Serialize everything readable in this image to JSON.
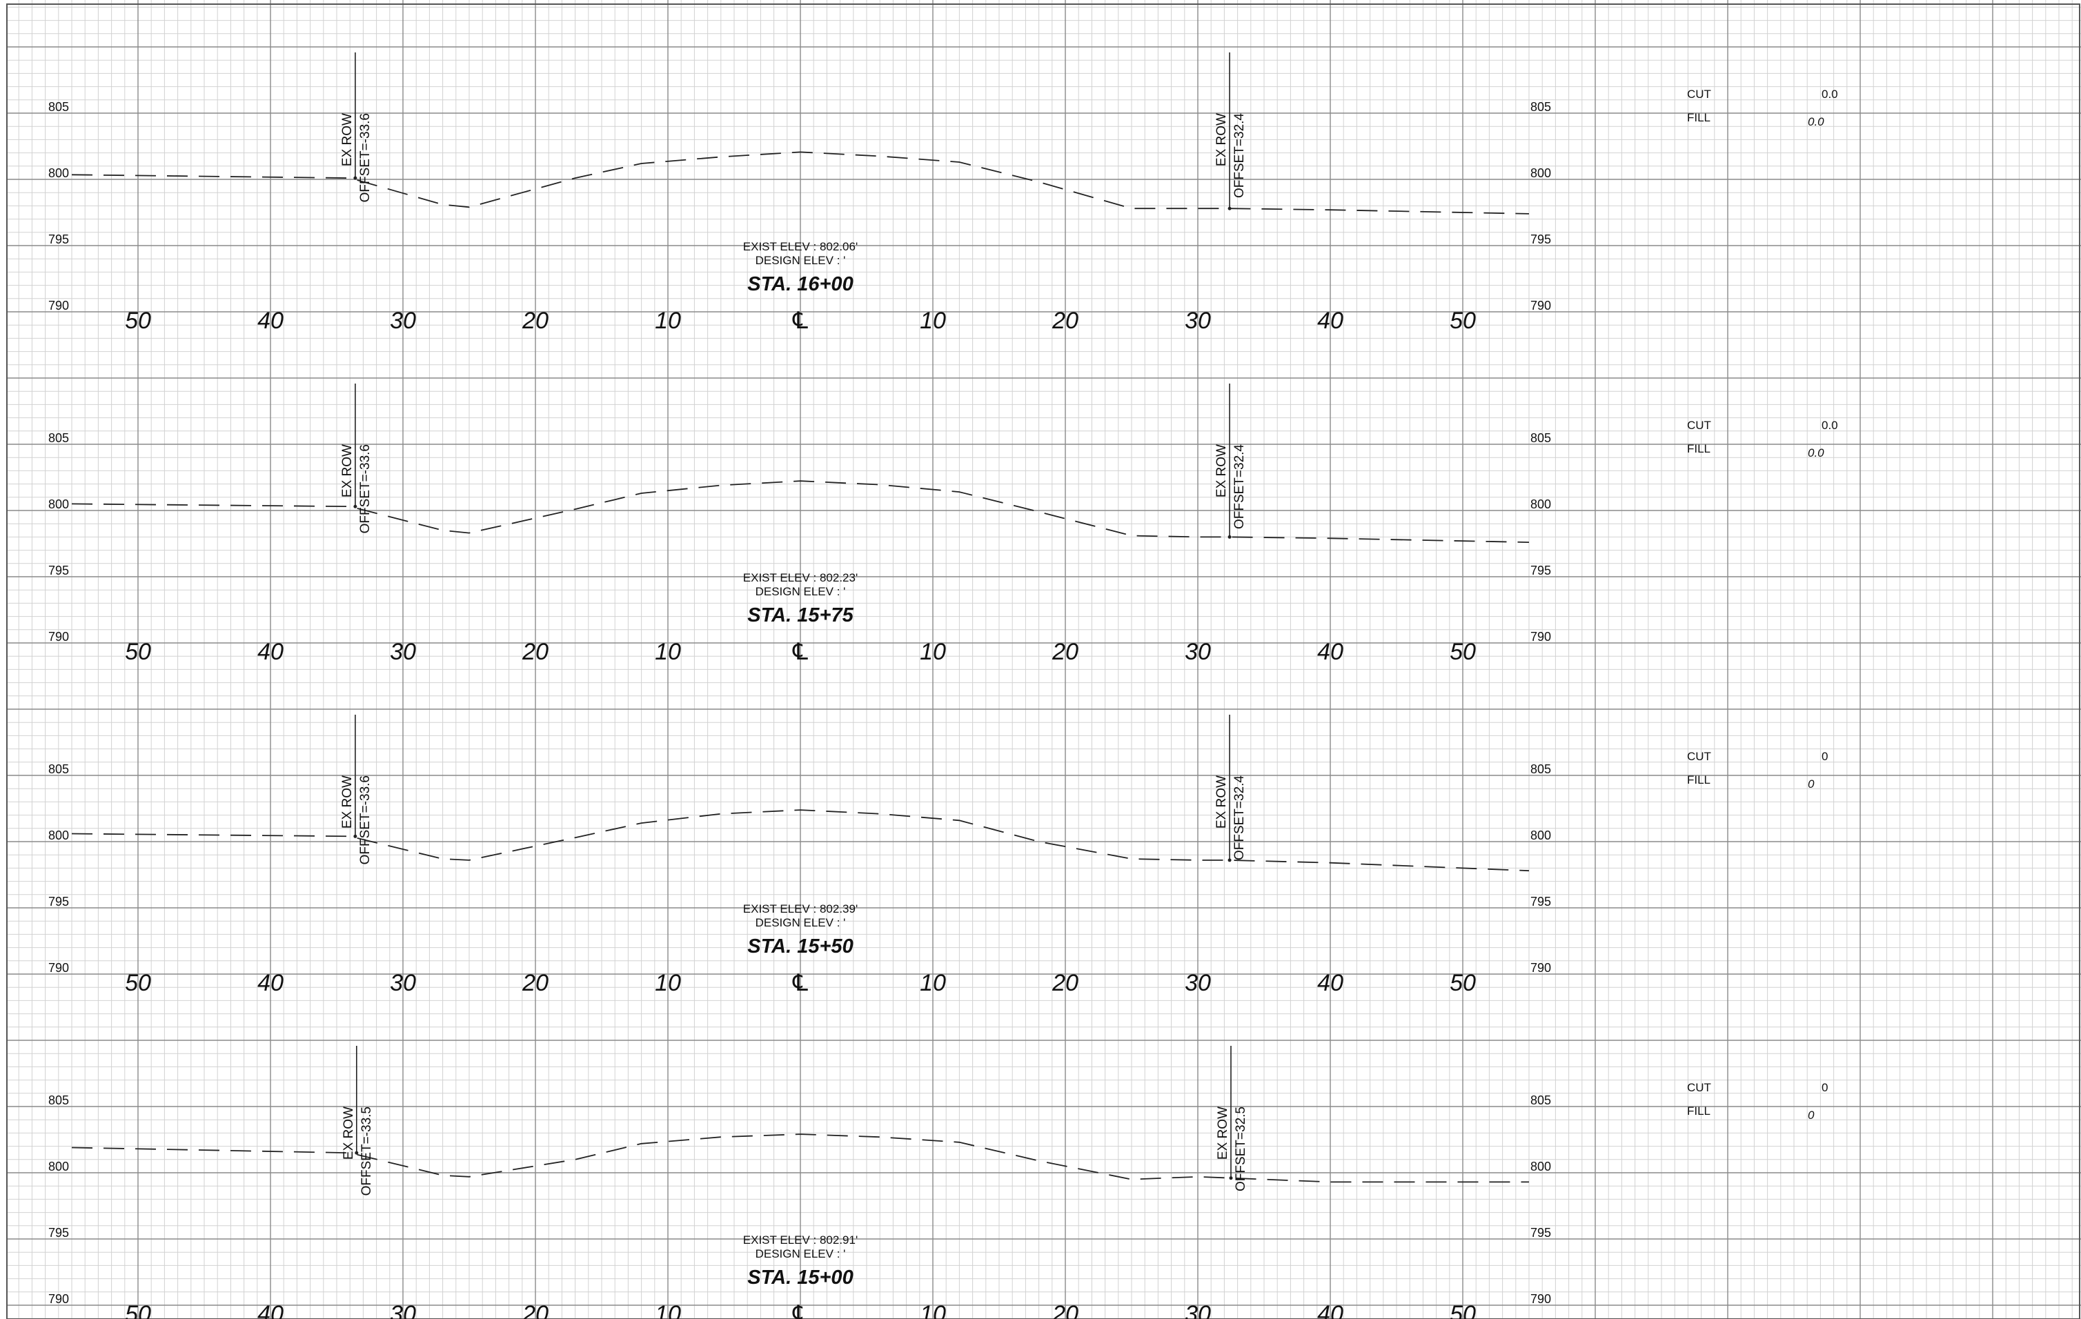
{
  "sheet": {
    "offset_labels_left": [
      "50",
      "40",
      "30",
      "20",
      "10"
    ],
    "offset_labels_right": [
      "10",
      "20",
      "30",
      "40",
      "50"
    ],
    "centerline_symbol": "℄",
    "elevation_labels": [
      "805",
      "800",
      "795",
      "790"
    ],
    "exist_elev_prefix": "EXIST ELEV : ",
    "design_elev_text": "DESIGN ELEV : '",
    "cut_label": "CUT",
    "fill_label": "FILL",
    "row_label_text": "EX ROW"
  },
  "sections": [
    {
      "station": "STA. 16+00",
      "exist_elev": "802.06'",
      "left_row_offset": "OFFSET=-33.6",
      "right_row_offset": "OFFSET=32.4",
      "cut_value": "0.0",
      "fill_value": "0.0",
      "profile": [
        [
          -55,
          800.35
        ],
        [
          -34,
          800.1
        ],
        [
          -27,
          798.1
        ],
        [
          -25,
          797.9
        ],
        [
          -17,
          800.1
        ],
        [
          -12,
          801.2
        ],
        [
          -6,
          801.7
        ],
        [
          0,
          802.06
        ],
        [
          6,
          801.75
        ],
        [
          12,
          801.3
        ],
        [
          18,
          799.8
        ],
        [
          25,
          797.8
        ],
        [
          30,
          797.8
        ],
        [
          32.4,
          797.8
        ],
        [
          40,
          797.7
        ],
        [
          55,
          797.4
        ]
      ]
    },
    {
      "station": "STA. 15+75",
      "exist_elev": "802.23'",
      "left_row_offset": "OFFSET=-33.6",
      "right_row_offset": "OFFSET=32.4",
      "cut_value": "0.0",
      "fill_value": "0.0",
      "profile": [
        [
          -55,
          800.5
        ],
        [
          -34,
          800.3
        ],
        [
          -27,
          798.5
        ],
        [
          -25,
          798.3
        ],
        [
          -17,
          800.1
        ],
        [
          -12,
          801.3
        ],
        [
          -6,
          801.9
        ],
        [
          0,
          802.23
        ],
        [
          6,
          801.95
        ],
        [
          12,
          801.4
        ],
        [
          18,
          799.9
        ],
        [
          25,
          798.1
        ],
        [
          30,
          798.0
        ],
        [
          32.4,
          798.0
        ],
        [
          40,
          797.9
        ],
        [
          55,
          797.6
        ]
      ]
    },
    {
      "station": "STA. 15+50",
      "exist_elev": "802.39'",
      "left_row_offset": "OFFSET=-33.6",
      "right_row_offset": "OFFSET=32.4",
      "cut_value": "0",
      "fill_value": "0",
      "profile": [
        [
          -55,
          800.6
        ],
        [
          -34,
          800.4
        ],
        [
          -27,
          798.7
        ],
        [
          -25,
          798.6
        ],
        [
          -17,
          800.3
        ],
        [
          -12,
          801.4
        ],
        [
          -6,
          802.1
        ],
        [
          0,
          802.39
        ],
        [
          6,
          802.1
        ],
        [
          12,
          801.6
        ],
        [
          18,
          800.0
        ],
        [
          25,
          798.7
        ],
        [
          30,
          798.6
        ],
        [
          32.4,
          798.6
        ],
        [
          40,
          798.4
        ],
        [
          55,
          797.8
        ]
      ]
    },
    {
      "station": "STA. 15+00",
      "exist_elev": "802.91'",
      "left_row_offset": "OFFSET=-33.5",
      "right_row_offset": "OFFSET=32.5",
      "cut_value": "0",
      "fill_value": "0",
      "profile": [
        [
          -55,
          801.9
        ],
        [
          -34,
          801.5
        ],
        [
          -27,
          799.8
        ],
        [
          -25,
          799.7
        ],
        [
          -17,
          801.0
        ],
        [
          -12,
          802.2
        ],
        [
          -6,
          802.7
        ],
        [
          0,
          802.91
        ],
        [
          6,
          802.7
        ],
        [
          12,
          802.3
        ],
        [
          18,
          800.9
        ],
        [
          25,
          799.5
        ],
        [
          30,
          799.7
        ],
        [
          32.5,
          799.6
        ],
        [
          40,
          799.3
        ],
        [
          55,
          799.3
        ]
      ]
    }
  ]
}
